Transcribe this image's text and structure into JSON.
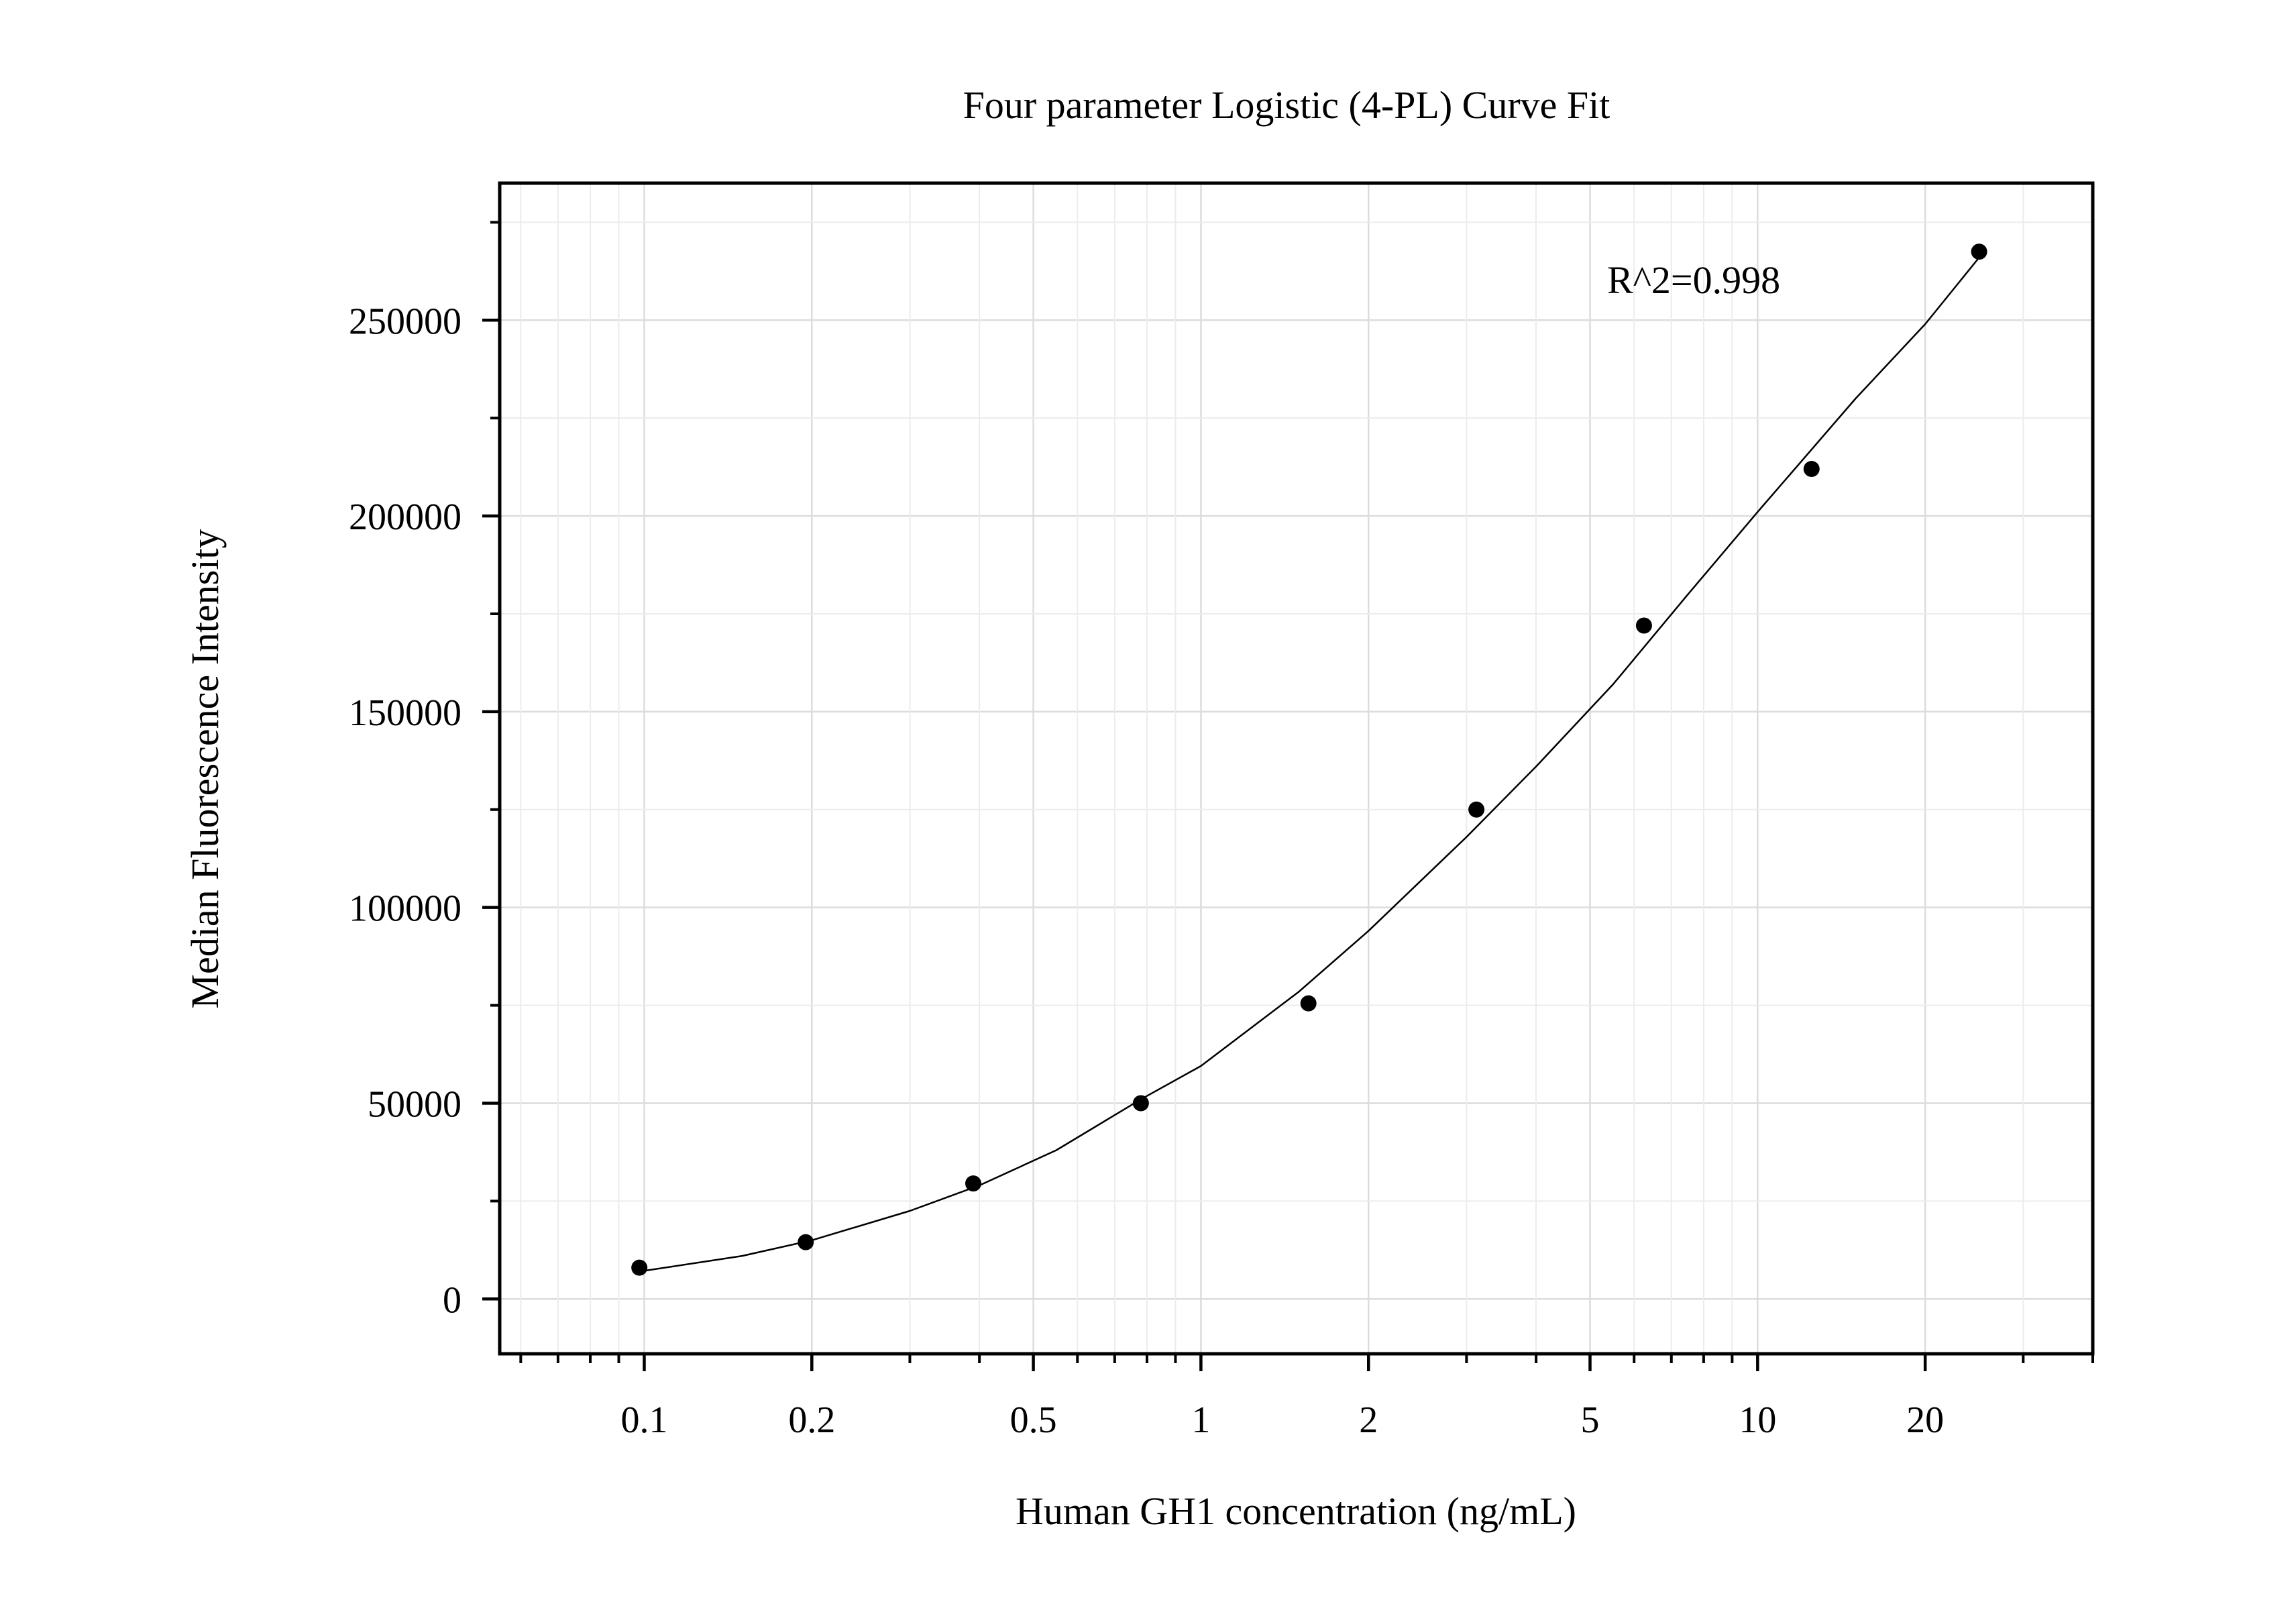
{
  "chart_data": {
    "type": "scatter",
    "title": "Four parameter Logistic (4-PL) Curve Fit",
    "xlabel": "Human GH1 concentration (ng/mL)",
    "ylabel": "Median Fluorescence Intensity",
    "xscale": "log",
    "xlim": [
      0.055,
      40
    ],
    "ylim": [
      -14000,
      285000
    ],
    "grid": true,
    "xticks": [
      {
        "value": 0.1,
        "label": "0.1"
      },
      {
        "value": 0.2,
        "label": "0.2"
      },
      {
        "value": 0.5,
        "label": "0.5"
      },
      {
        "value": 1,
        "label": "1"
      },
      {
        "value": 2,
        "label": "2"
      },
      {
        "value": 5,
        "label": "5"
      },
      {
        "value": 10,
        "label": "10"
      },
      {
        "value": 20,
        "label": "20"
      }
    ],
    "yticks": [
      {
        "value": 0,
        "label": "0"
      },
      {
        "value": 50000,
        "label": "50000"
      },
      {
        "value": 100000,
        "label": "100000"
      },
      {
        "value": 150000,
        "label": "150000"
      },
      {
        "value": 200000,
        "label": "200000"
      },
      {
        "value": 250000,
        "label": "250000"
      }
    ],
    "annotation": "R^2=0.998",
    "annotation_position": "top-right",
    "series": [
      {
        "kind": "points",
        "color": "#000000",
        "x": [
          0.098,
          0.195,
          0.39,
          0.78,
          1.56,
          3.125,
          6.25,
          12.5,
          25
        ],
        "y": [
          8000,
          14500,
          29500,
          50000,
          75500,
          125000,
          172000,
          212000,
          267500
        ]
      },
      {
        "kind": "fit-curve",
        "color": "#000000",
        "x": [
          0.098,
          0.15,
          0.2,
          0.3,
          0.4,
          0.55,
          0.78,
          1.0,
          1.5,
          2.0,
          3.0,
          4.0,
          5.5,
          7.5,
          10.0,
          15.0,
          20.0,
          25.0
        ],
        "y": [
          7000,
          11000,
          15000,
          22500,
          29000,
          38000,
          51000,
          59500,
          78500,
          94000,
          118000,
          136000,
          157000,
          180000,
          201000,
          230000,
          249000,
          266000
        ]
      }
    ]
  }
}
